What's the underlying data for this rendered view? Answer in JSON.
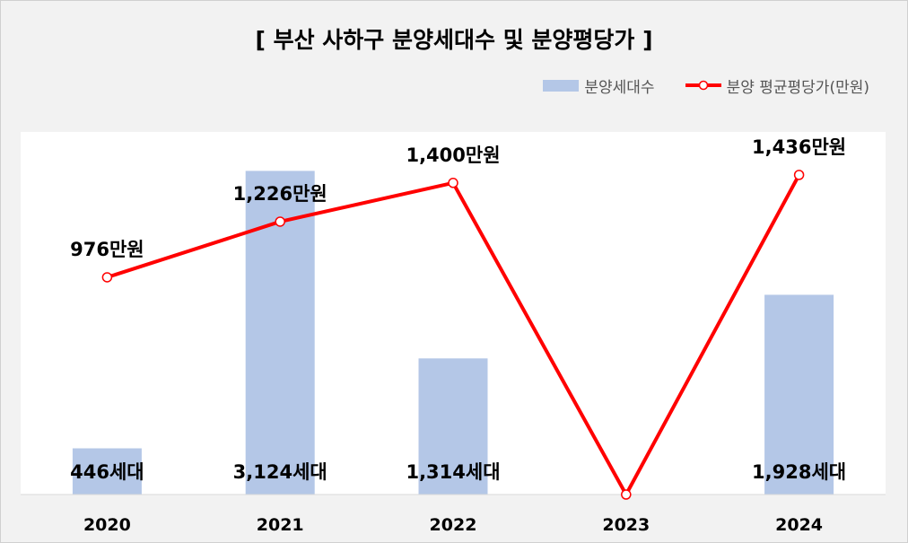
{
  "title": "[ 부산 사하구 분양세대수 및 분양평당가 ]",
  "colors": {
    "bar": "#b4c7e7",
    "line": "#ff0000",
    "frame_bg": "#f2f2f2",
    "plot_bg": "#ffffff"
  },
  "legend": {
    "bar_label": "분양세대수",
    "line_label": "분양 평균평당가(만원)"
  },
  "chart_data": {
    "type": "bar+line",
    "categories": [
      "2020",
      "2021",
      "2022",
      "2023",
      "2024"
    ],
    "series": [
      {
        "name": "분양세대수",
        "type": "bar",
        "axis": "left",
        "values": [
          446,
          3124,
          1314,
          0,
          1928
        ],
        "labels": [
          "446세대",
          "3,124세대",
          "1,314세대",
          "",
          "1,928세대"
        ]
      },
      {
        "name": "분양 평균평당가(만원)",
        "type": "line",
        "axis": "right",
        "values": [
          976,
          1226,
          1400,
          0,
          1436
        ],
        "labels": [
          "976만원",
          "1,226만원",
          "1,400만원",
          "",
          "1,436만원"
        ]
      }
    ],
    "bar_axis_range": [
      0,
      3500
    ],
    "line_axis_range": [
      0,
      1500
    ]
  }
}
